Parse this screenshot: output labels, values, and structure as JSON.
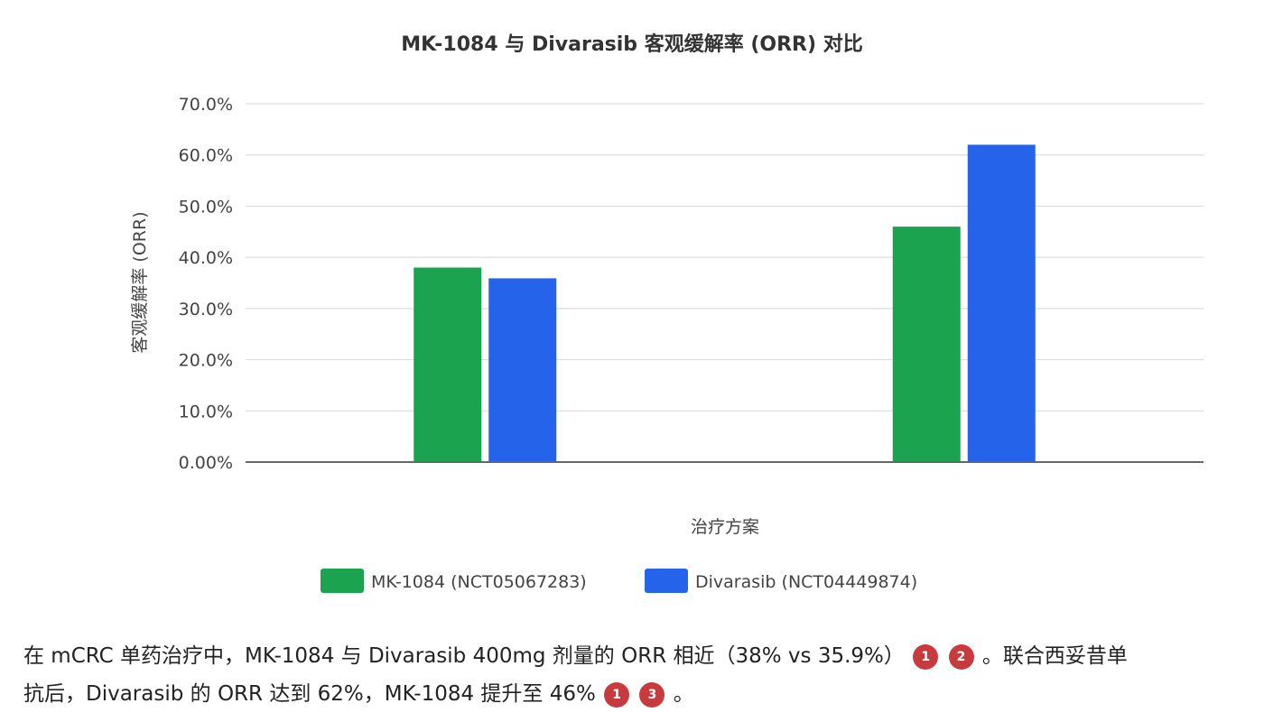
{
  "colors": {
    "mk1084": "#1ba34f",
    "divarasib": "#2563eb",
    "citation": "#c73a3e"
  },
  "chart_data": {
    "type": "bar",
    "title": "MK-1084 与 Divarasib 客观缓解率 (ORR) 对比",
    "xlabel": "治疗方案",
    "ylabel": "客观缓解率 (ORR)",
    "categories": [
      "",
      ""
    ],
    "series": [
      {
        "name": "MK-1084 (NCT05067283)",
        "values": [
          38,
          46
        ],
        "color_key": "mk1084"
      },
      {
        "name": "Divarasib (NCT04449874)",
        "values": [
          35.9,
          62
        ],
        "color_key": "divarasib"
      }
    ],
    "ylim": [
      0,
      70
    ],
    "yticks": [
      "0.00%",
      "10.0%",
      "20.0%",
      "30.0%",
      "40.0%",
      "50.0%",
      "60.0%",
      "70.0%"
    ],
    "ytick_values": [
      0,
      10,
      20,
      30,
      40,
      50,
      60,
      70
    ],
    "grid": true,
    "legend_position": "bottom-center"
  },
  "caption": {
    "line1_text": "在 mCRC 单药治疗中，MK-1084 与 Divarasib 400mg 剂量的 ORR 相近（38% vs 35.9%）",
    "line1_cites": [
      "1",
      "2"
    ],
    "line1_tail": "。联合西妥昔单",
    "line2_text": "抗后，Divarasib 的 ORR 达到 62%，MK-1084 提升至 46%",
    "line2_cites": [
      "1",
      "3"
    ],
    "line2_tail": "。"
  }
}
